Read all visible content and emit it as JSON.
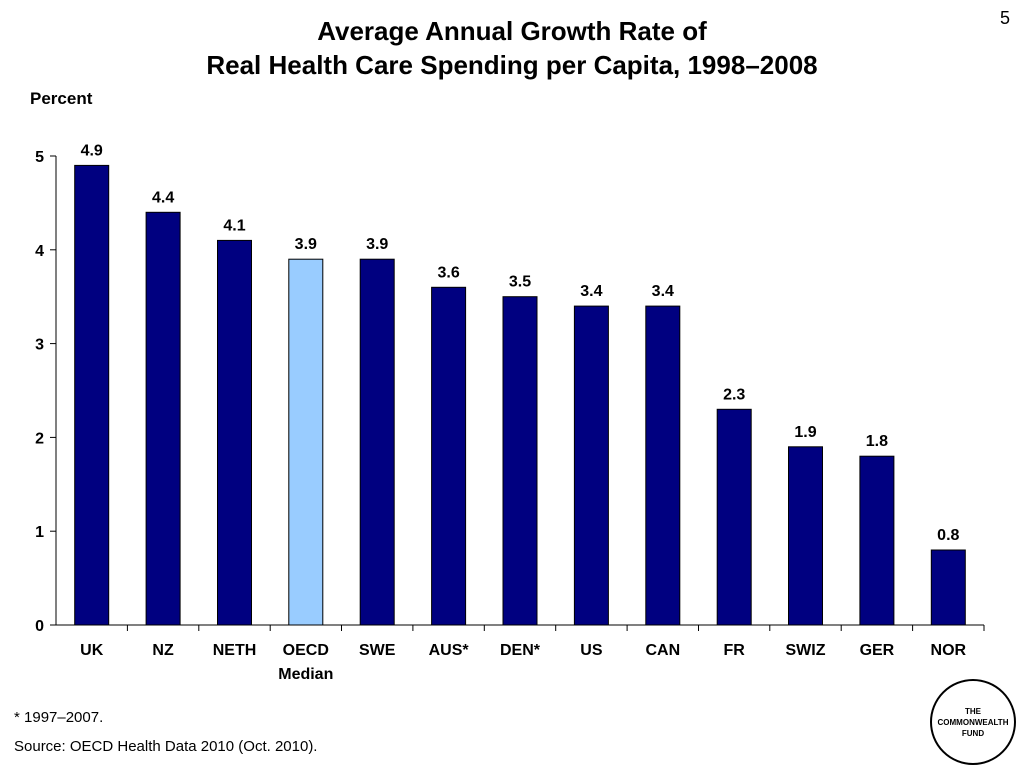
{
  "slide": {
    "number": "5",
    "title_line1": "Average Annual Growth Rate of",
    "title_line2": "Real Health Care Spending per Capita, 1998–2008",
    "footnote": "* 1997–2007.",
    "source": "Source: OECD Health Data 2010 (Oct. 2010)."
  },
  "logo": {
    "line1": "THE",
    "line2": "COMMONWEALTH",
    "line3": "FUND"
  },
  "chart_data": {
    "type": "bar",
    "ylabel": "Percent",
    "ylim": [
      0,
      5
    ],
    "yticks": [
      "0",
      "1",
      "2",
      "3",
      "4",
      "5"
    ],
    "grid": false,
    "categories": [
      "UK",
      "NZ",
      "NETH",
      "OECD Median",
      "SWE",
      "AUS*",
      "DEN*",
      "US",
      "CAN",
      "FR",
      "SWIZ",
      "GER",
      "NOR"
    ],
    "values": [
      4.9,
      4.4,
      4.1,
      3.9,
      3.9,
      3.6,
      3.5,
      3.4,
      3.4,
      2.3,
      1.9,
      1.8,
      0.8
    ],
    "value_labels": [
      "4.9",
      "4.4",
      "4.1",
      "3.9",
      "3.9",
      "3.6",
      "3.5",
      "3.4",
      "3.4",
      "2.3",
      "1.9",
      "1.8",
      "0.8"
    ],
    "colors": {
      "bar": "#000080",
      "highlight_bar": "#99CCFF",
      "outline": "#000000"
    },
    "highlight_category": "OECD Median"
  }
}
